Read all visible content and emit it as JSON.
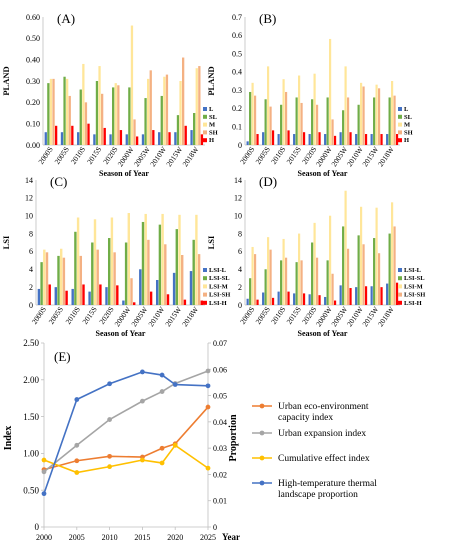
{
  "chart_data": [
    {
      "id": "A",
      "type": "bar",
      "panel_label": "(A)",
      "ylabel": "PLAND",
      "xlabel": "Season of Year",
      "ylim": [
        0,
        0.6
      ],
      "yticks": [
        "0.00",
        "0.10",
        "0.20",
        "0.30",
        "0.40",
        "0.50",
        "0.60"
      ],
      "categories": [
        "2000S",
        "2005S",
        "2010S",
        "2015S",
        "2020S",
        "2000W",
        "2005W",
        "2010W",
        "2015W",
        "2018W"
      ],
      "legend_position": "right",
      "series": [
        {
          "name": "L",
          "color": "#4472c4",
          "values": [
            0.06,
            0.06,
            0.06,
            0.05,
            0.05,
            0.05,
            0.05,
            0.06,
            0.06,
            0.07
          ]
        },
        {
          "name": "SL",
          "color": "#70ad47",
          "values": [
            0.29,
            0.32,
            0.26,
            0.3,
            0.27,
            0.27,
            0.22,
            0.23,
            0.14,
            0.15
          ]
        },
        {
          "name": "M",
          "color": "#ffe699",
          "values": [
            0.31,
            0.31,
            0.38,
            0.37,
            0.29,
            0.56,
            0.31,
            0.32,
            0.3,
            0.36
          ]
        },
        {
          "name": "SH",
          "color": "#f4b183",
          "values": [
            0.31,
            0.23,
            0.2,
            0.24,
            0.28,
            0.12,
            0.35,
            0.33,
            0.41,
            0.37
          ]
        },
        {
          "name": "H",
          "color": "#ff0000",
          "values": [
            0.09,
            0.09,
            0.1,
            0.08,
            0.07,
            0.04,
            0.07,
            0.06,
            0.09,
            0.05
          ]
        }
      ]
    },
    {
      "id": "B",
      "type": "bar",
      "panel_label": "(B)",
      "ylabel": "PLAND",
      "xlabel": "Season of Year",
      "ylim": [
        0,
        0.7
      ],
      "yticks": [
        "0",
        "0.1",
        "0.2",
        "0.3",
        "0.4",
        "0.5",
        "0.6",
        "0.7"
      ],
      "categories": [
        "2000S",
        "2005S",
        "2010S",
        "2015S",
        "2020S",
        "2000W",
        "2005W",
        "2010W",
        "2015W",
        "2018W"
      ],
      "legend_position": "right",
      "series": [
        {
          "name": "L",
          "color": "#4472c4",
          "values": [
            0.02,
            0.07,
            0.06,
            0.06,
            0.06,
            0.06,
            0.07,
            0.06,
            0.06,
            0.06
          ]
        },
        {
          "name": "SL",
          "color": "#70ad47",
          "values": [
            0.29,
            0.25,
            0.22,
            0.26,
            0.25,
            0.26,
            0.19,
            0.22,
            0.26,
            0.26
          ]
        },
        {
          "name": "M",
          "color": "#ffe699",
          "values": [
            0.34,
            0.43,
            0.36,
            0.38,
            0.39,
            0.58,
            0.43,
            0.34,
            0.33,
            0.35
          ]
        },
        {
          "name": "SH",
          "color": "#f4b183",
          "values": [
            0.27,
            0.21,
            0.29,
            0.23,
            0.22,
            0.14,
            0.26,
            0.32,
            0.31,
            0.27
          ]
        },
        {
          "name": "H",
          "color": "#ff0000",
          "values": [
            0.06,
            0.08,
            0.08,
            0.07,
            0.07,
            0.05,
            0.07,
            0.06,
            0.06,
            0.06
          ]
        }
      ]
    },
    {
      "id": "C",
      "type": "bar",
      "panel_label": "(C)",
      "ylabel": "LSI",
      "xlabel": "Season of Year",
      "ylim": [
        0,
        14
      ],
      "yticks": [
        "0",
        "2",
        "4",
        "6",
        "8",
        "10",
        "12",
        "14"
      ],
      "categories": [
        "2000S",
        "2005S",
        "2010S",
        "2015S",
        "2020S",
        "2000W",
        "2005W",
        "2010W",
        "2015W",
        "2018W"
      ],
      "legend_position": "right",
      "series": [
        {
          "name": "LSI-L",
          "color": "#4472c4",
          "values": [
            1.8,
            2.0,
            1.8,
            1.5,
            2.0,
            0.5,
            4.0,
            2.8,
            3.6,
            3.8
          ]
        },
        {
          "name": "LSI-SL",
          "color": "#70ad47",
          "values": [
            4.8,
            5.5,
            8.2,
            7.0,
            7.5,
            7.0,
            9.3,
            9.0,
            8.5,
            7.3
          ]
        },
        {
          "name": "LSI-M",
          "color": "#ffe699",
          "values": [
            6.2,
            6.3,
            9.8,
            9.6,
            9.8,
            10.3,
            10.2,
            10.2,
            10.1,
            10.1
          ]
        },
        {
          "name": "LSI-SH",
          "color": "#f4b183",
          "values": [
            5.9,
            5.3,
            5.5,
            6.2,
            5.9,
            3.0,
            7.3,
            6.8,
            5.6,
            5.7
          ]
        },
        {
          "name": "LSI-H",
          "color": "#ff0000",
          "values": [
            2.3,
            1.6,
            2.3,
            2.3,
            2.2,
            0.3,
            1.5,
            1.2,
            0.6,
            0.5
          ]
        }
      ]
    },
    {
      "id": "D",
      "type": "bar",
      "panel_label": "(D)",
      "ylabel": "LSI",
      "xlabel": "Season of Year",
      "ylim": [
        0,
        14
      ],
      "yticks": [
        "0",
        "2",
        "4",
        "6",
        "8",
        "10",
        "12",
        "14"
      ],
      "categories": [
        "2000S",
        "2005S",
        "2010S",
        "2015S",
        "2020S",
        "2000W",
        "2005W",
        "2010W",
        "2015W",
        "2018W"
      ],
      "legend_position": "right",
      "series": [
        {
          "name": "LSI-L",
          "color": "#4472c4",
          "values": [
            0.7,
            1.4,
            1.5,
            1.3,
            1.2,
            0.9,
            2.2,
            2.0,
            2.1,
            2.4
          ]
        },
        {
          "name": "LSI-SL",
          "color": "#70ad47",
          "values": [
            3.0,
            4.0,
            5.0,
            4.8,
            7.0,
            5.0,
            8.8,
            7.8,
            7.5,
            8.0
          ]
        },
        {
          "name": "LSI-M",
          "color": "#ffe699",
          "values": [
            6.5,
            7.6,
            7.4,
            8.0,
            9.2,
            10.0,
            12.8,
            11.0,
            10.9,
            11.5
          ]
        },
        {
          "name": "LSI-SH",
          "color": "#f4b183",
          "values": [
            5.7,
            6.2,
            5.3,
            5.0,
            5.3,
            3.5,
            6.3,
            6.8,
            5.8,
            8.8
          ]
        },
        {
          "name": "LSI-H",
          "color": "#ff0000",
          "values": [
            0.6,
            0.8,
            1.5,
            1.3,
            1.1,
            0.5,
            1.9,
            2.1,
            2.0,
            2.5
          ]
        }
      ]
    },
    {
      "id": "E",
      "type": "line",
      "panel_label": "(E)",
      "ylabel": "Index",
      "y2label": "Proportion",
      "xlabel": "Year",
      "x": [
        2000,
        2005,
        2010,
        2015,
        2018,
        2020,
        2025
      ],
      "xticks": [
        "2000",
        "2005",
        "2010",
        "2015",
        "2020",
        "2025"
      ],
      "ylim": [
        0,
        2.5
      ],
      "yticks": [
        "0",
        "0.50",
        "1.00",
        "1.50",
        "2.00",
        "2.50"
      ],
      "y2lim": [
        0,
        0.07
      ],
      "y2ticks": [
        "0",
        "0.01",
        "0.02",
        "0.03",
        "0.04",
        "0.05",
        "0.06",
        "0.07"
      ],
      "legend_position": "right",
      "series": [
        {
          "name": "Urban eco-environment capacity index",
          "color": "#ed7d31",
          "axis": "left",
          "values": [
            0.78,
            0.9,
            0.96,
            0.95,
            1.07,
            1.13,
            1.63
          ]
        },
        {
          "name": "Urban expansion index",
          "color": "#a5a5a5",
          "axis": "left",
          "values": [
            0.75,
            1.11,
            1.46,
            1.71,
            1.84,
            1.95,
            2.12
          ]
        },
        {
          "name": "Cumulative effect index",
          "color": "#ffc000",
          "axis": "left",
          "values": [
            0.91,
            0.74,
            0.82,
            0.91,
            0.87,
            1.11,
            0.8
          ]
        },
        {
          "name": "High-temperature thermal landscape proportion",
          "color": "#4472c4",
          "axis": "right",
          "values": [
            0.0127,
            0.0485,
            0.0545,
            0.059,
            0.0578,
            0.0542,
            0.0537
          ]
        }
      ]
    }
  ]
}
